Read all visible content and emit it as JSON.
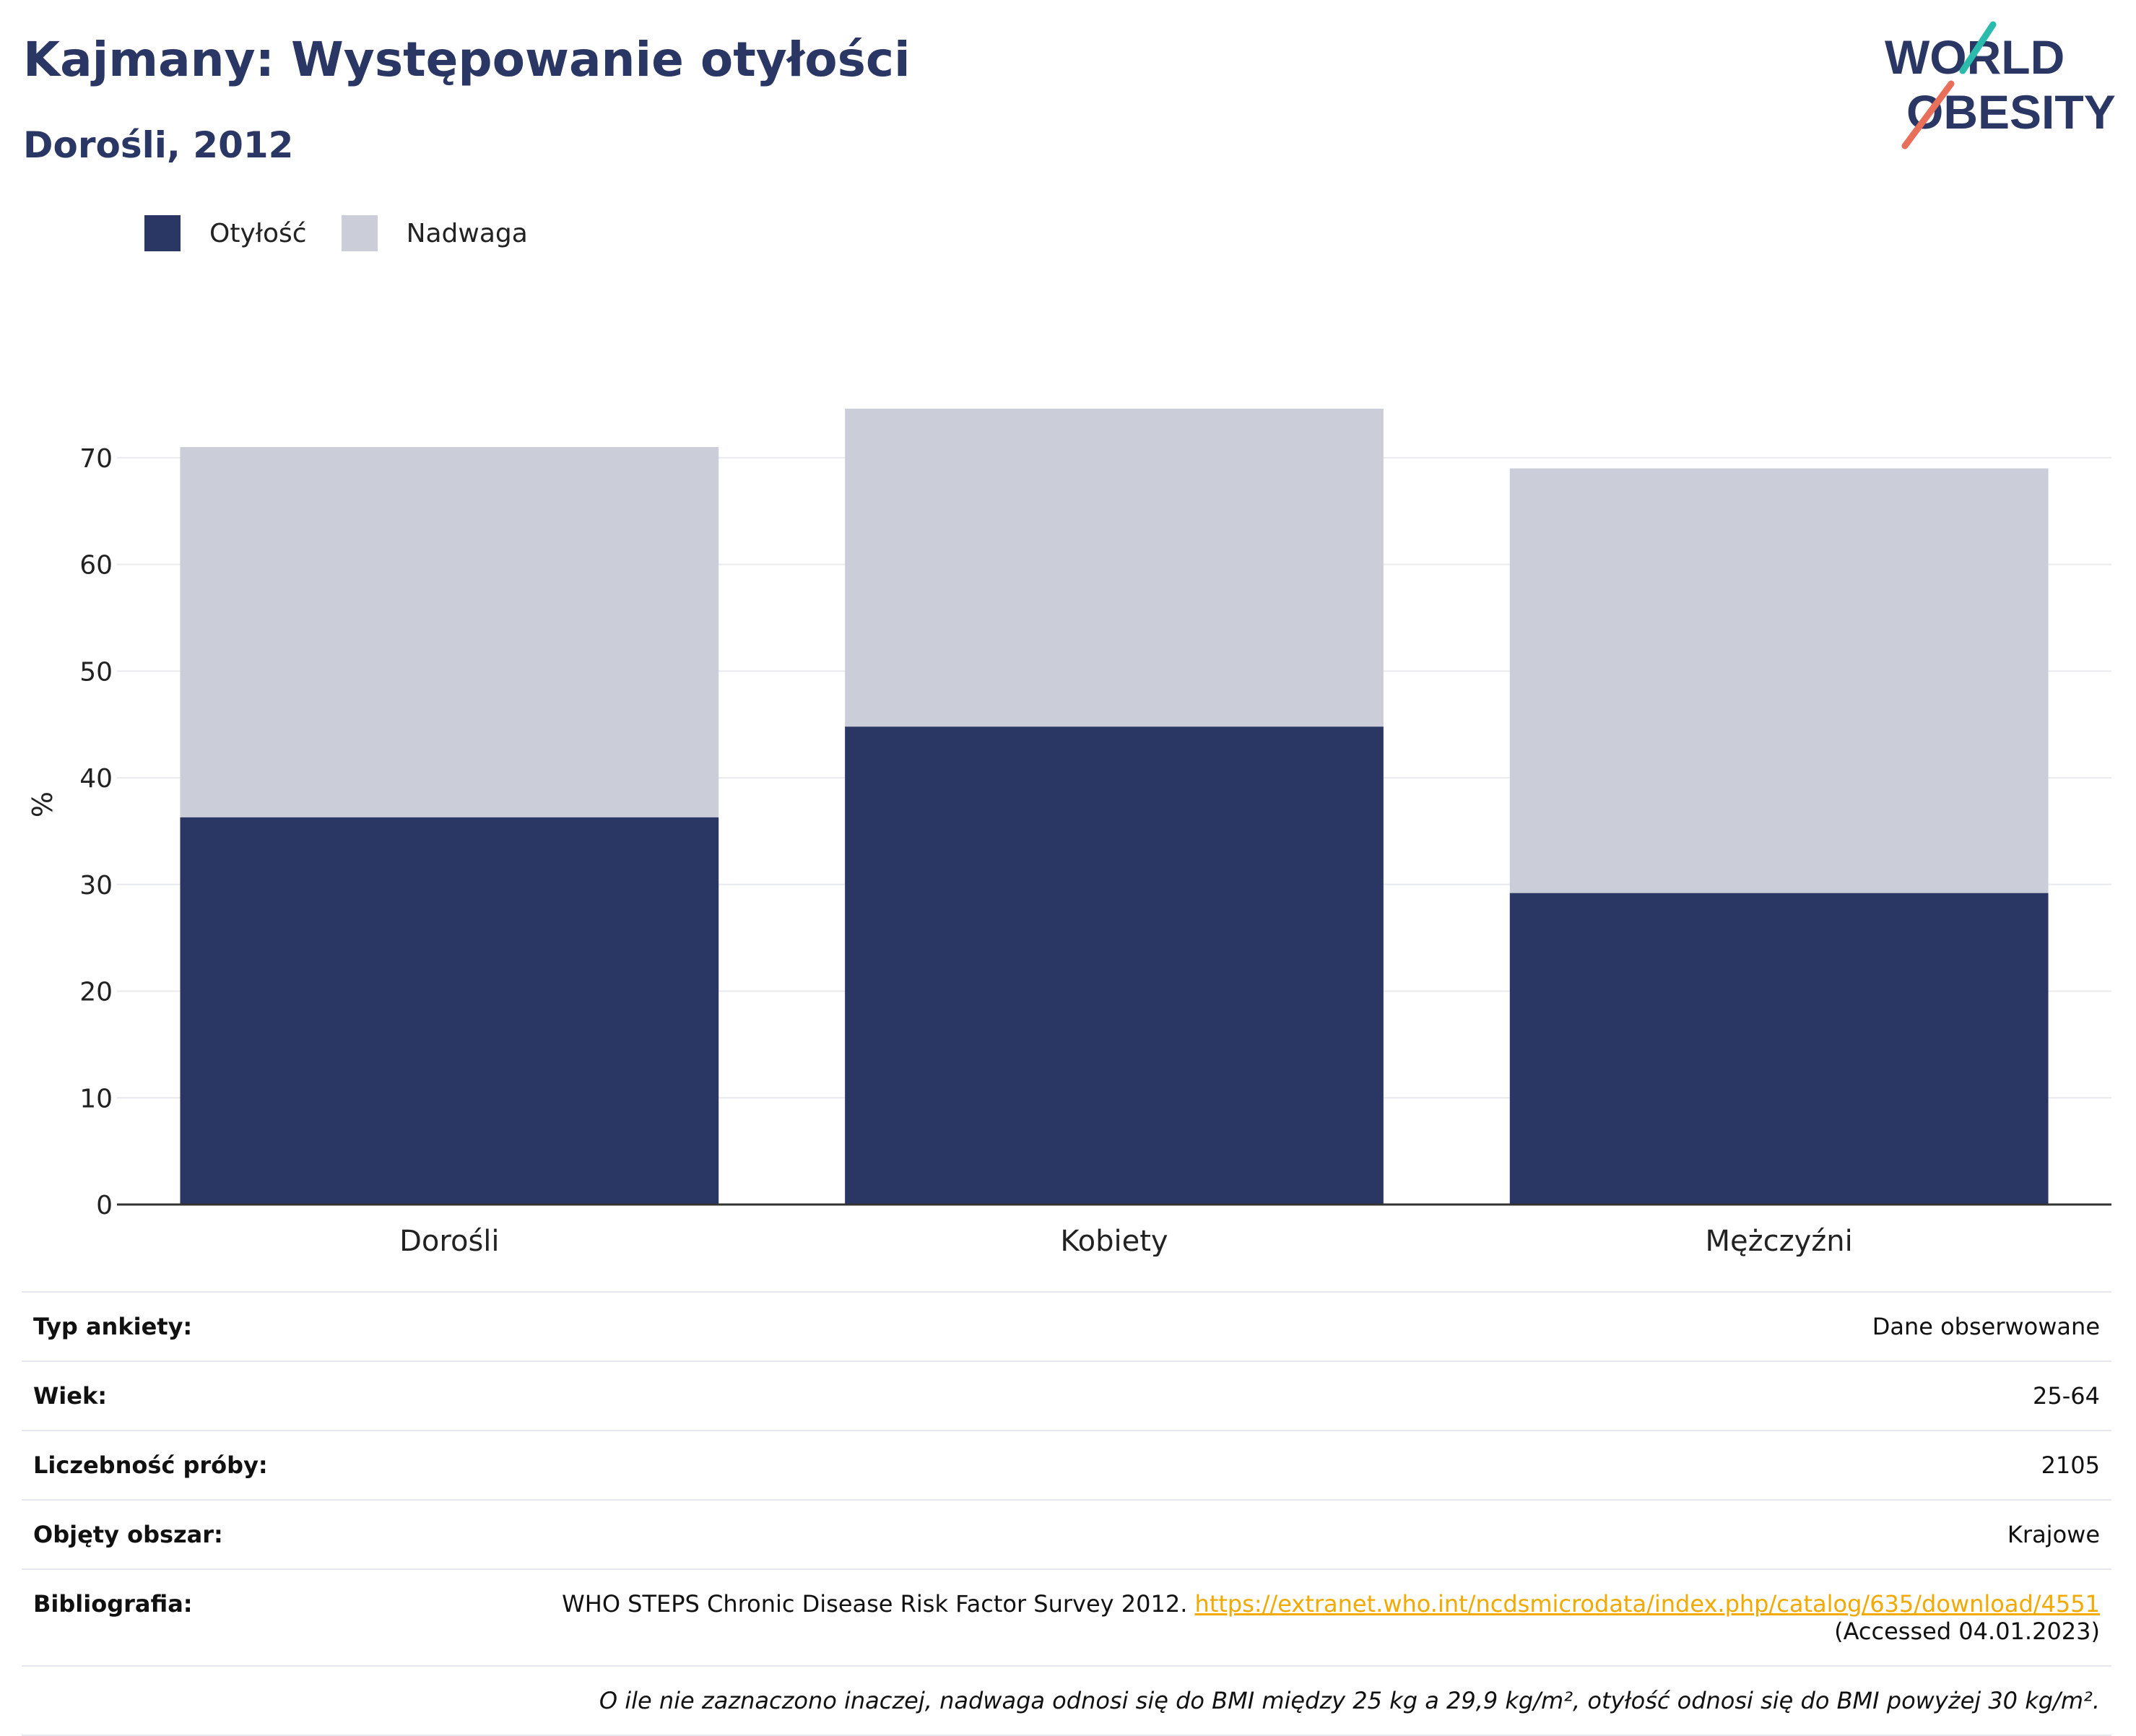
{
  "header": {
    "title": "Kajmany: Występowanie otyłości",
    "subtitle": "Dorośli, 2012"
  },
  "logo": {
    "line1": "WORLD",
    "line2": "OBESITY"
  },
  "colors": {
    "obesity": "#2a3663",
    "overweight": "#cbcdd8",
    "accent_teal": "#2bbbad",
    "accent_coral": "#e8705a",
    "link": "#f2a900"
  },
  "chart_data": {
    "type": "bar",
    "stacked": true,
    "categories": [
      "Dorośli",
      "Kobiety",
      "Mężczyźni"
    ],
    "series": [
      {
        "name": "Otyłość",
        "values": [
          36.3,
          44.8,
          29.2
        ]
      },
      {
        "name": "Nadwaga",
        "values": [
          34.7,
          29.8,
          39.8
        ]
      }
    ],
    "ylabel": "%",
    "xlabel": "",
    "ylim": [
      0,
      75
    ],
    "yticks": [
      0,
      10,
      20,
      30,
      40,
      50,
      60,
      70
    ],
    "grid": true,
    "legend_position": "top-left"
  },
  "meta": {
    "rows": [
      {
        "label": "Typ ankiety:",
        "value": "Dane obserwowane"
      },
      {
        "label": "Wiek:",
        "value": "25-64"
      },
      {
        "label": "Liczebność próby:",
        "value": "2105"
      },
      {
        "label": "Objęty obszar:",
        "value": "Krajowe"
      }
    ],
    "bibliography": {
      "label": "Bibliografia:",
      "text": "WHO STEPS Chronic Disease Risk Factor Survey 2012.",
      "url": "https://extranet.who.int/ncdsmicrodata/index.php/catalog/635/download/4551",
      "accessed": "(Accessed 04.01.2023)"
    },
    "note": "O ile nie zaznaczono inaczej, nadwaga odnosi się do BMI między 25 kg a 29,9 kg/m², otyłość odnosi się do BMI powyżej 30 kg/m²."
  }
}
